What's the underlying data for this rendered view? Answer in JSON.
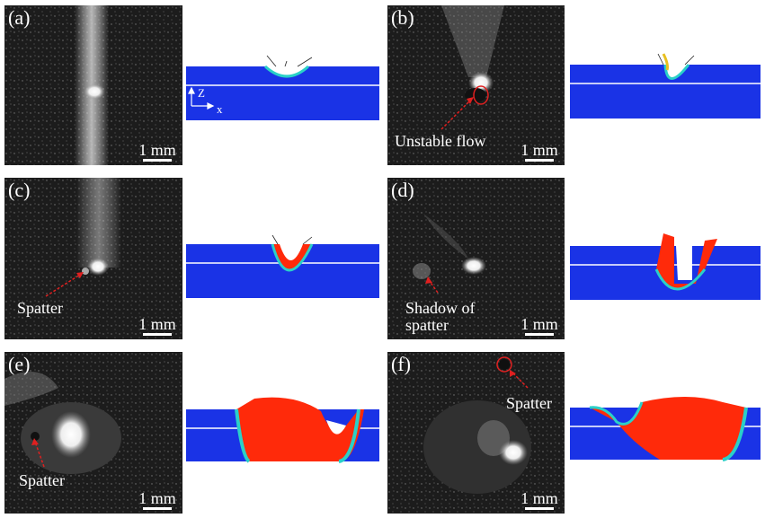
{
  "panels": [
    {
      "id": "a",
      "label": "(a)",
      "scale": "1 mm",
      "annotations": [],
      "axes": {
        "z": "Z",
        "x": "x"
      }
    },
    {
      "id": "b",
      "label": "(b)",
      "scale": "1 mm",
      "annotations": [
        "Unstable flow"
      ]
    },
    {
      "id": "c",
      "label": "(c)",
      "scale": "1 mm",
      "annotations": [
        "Spatter"
      ]
    },
    {
      "id": "d",
      "label": "(d)",
      "scale": "1 mm",
      "annotations": [
        "Shadow of",
        "spatter"
      ]
    },
    {
      "id": "e",
      "label": "(e)",
      "scale": "1 mm",
      "annotations": [
        "Spatter"
      ]
    },
    {
      "id": "f",
      "label": "(f)",
      "scale": "1 mm",
      "annotations": [
        "Spatter"
      ]
    }
  ],
  "colors": {
    "substrate": "#1a33e6",
    "melt": "#ff2a0a",
    "annotation_arrow": "#e02020",
    "layer_line": "#ffffff"
  }
}
